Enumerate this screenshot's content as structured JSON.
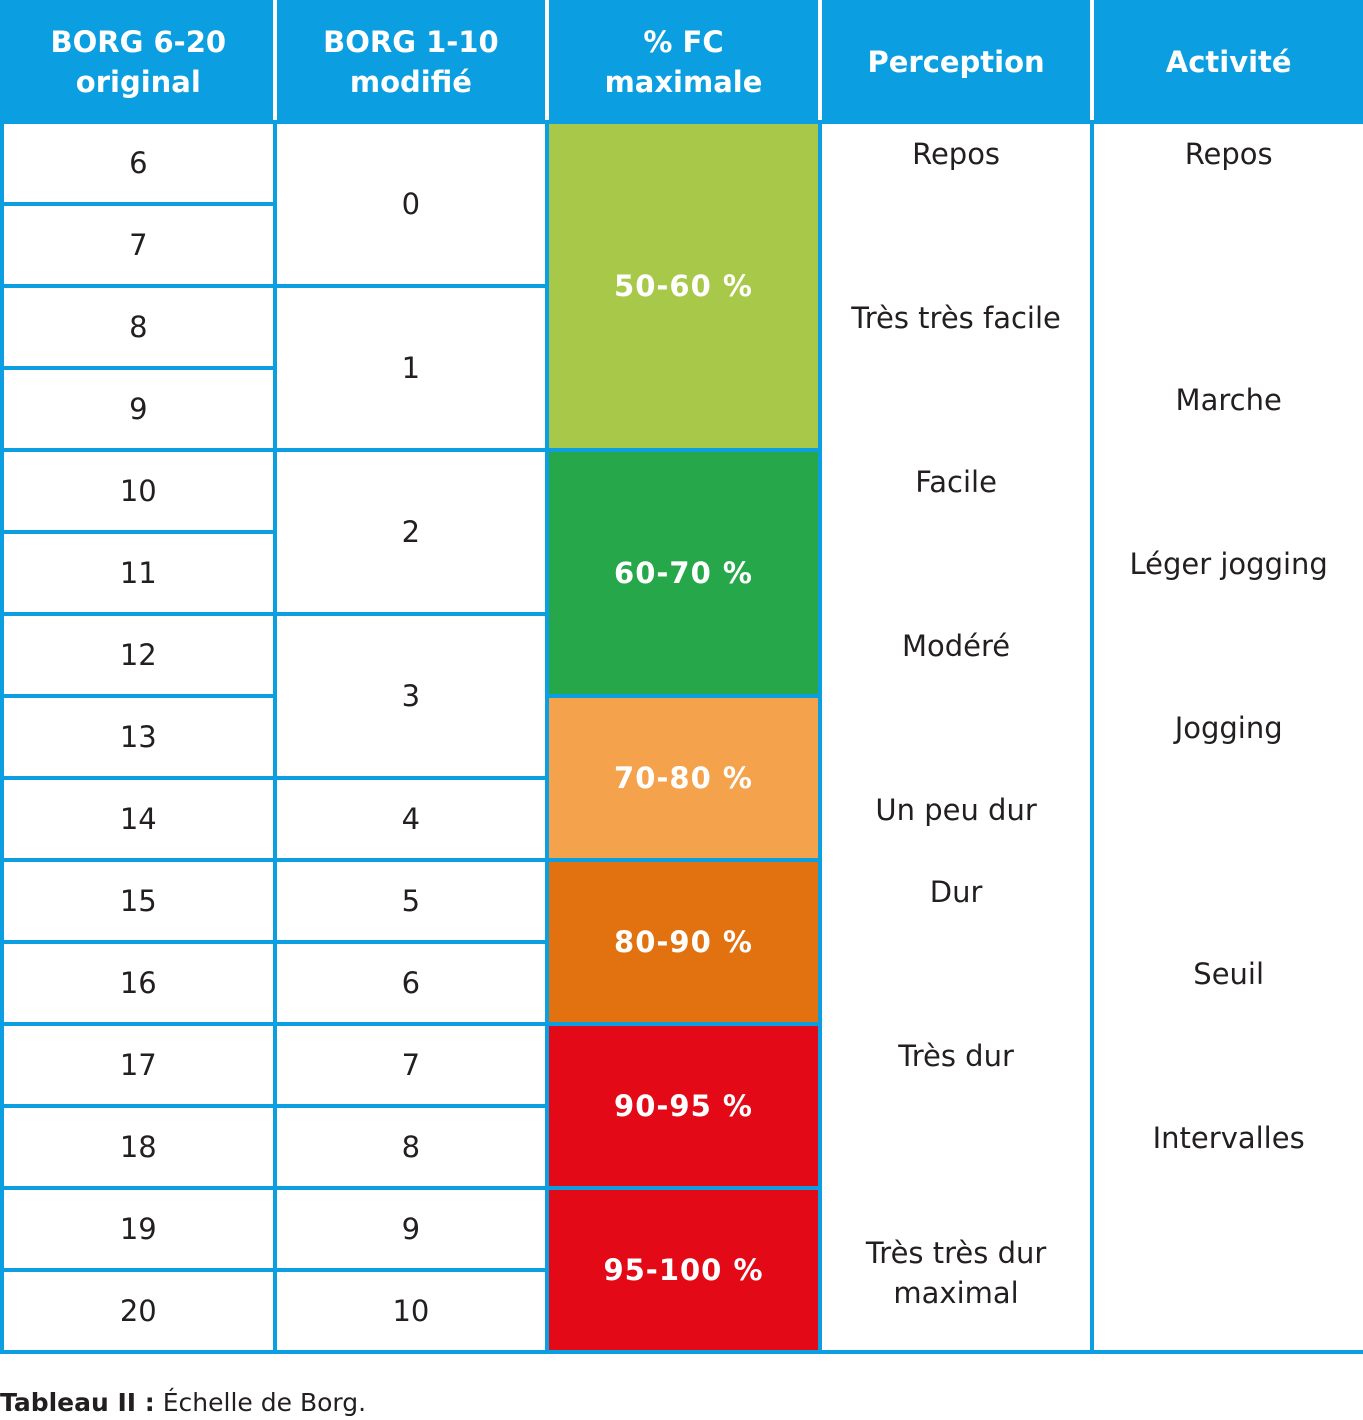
{
  "header": {
    "col1": [
      "BORG 6-20",
      "original"
    ],
    "col2": [
      "BORG 1-10",
      "modifié"
    ],
    "col3": [
      "% FC",
      "maximale"
    ],
    "col4": "Perception",
    "col5": "Activité"
  },
  "borg_original": [
    "6",
    "7",
    "8",
    "9",
    "10",
    "11",
    "12",
    "13",
    "14",
    "15",
    "16",
    "17",
    "18",
    "19",
    "20"
  ],
  "borg_modified": [
    "0",
    "1",
    "2",
    "3",
    "4",
    "5",
    "6",
    "7",
    "8",
    "9",
    "10"
  ],
  "fc_bands": [
    "50-60 %",
    "60-70 %",
    "70-80 %",
    "80-90 %",
    "90-95 %",
    "95-100 %"
  ],
  "fc_colors": [
    "#a8c84a",
    "#25a74a",
    "#f5a24d",
    "#e2710f",
    "#e30916",
    "#e30916"
  ],
  "perception": [
    "Repos",
    "Très très facile",
    "Facile",
    "Modéré",
    "Un peu dur",
    "Dur",
    "Très dur",
    [
      "Très très dur",
      "maximal"
    ]
  ],
  "activite": [
    "Repos",
    "Marche",
    "Léger jogging",
    "Jogging",
    "Seuil",
    "Intervalles"
  ],
  "caption": {
    "label": "Tableau II :",
    "text": "Échelle de Borg."
  },
  "accent_color": "#0b9ee0"
}
